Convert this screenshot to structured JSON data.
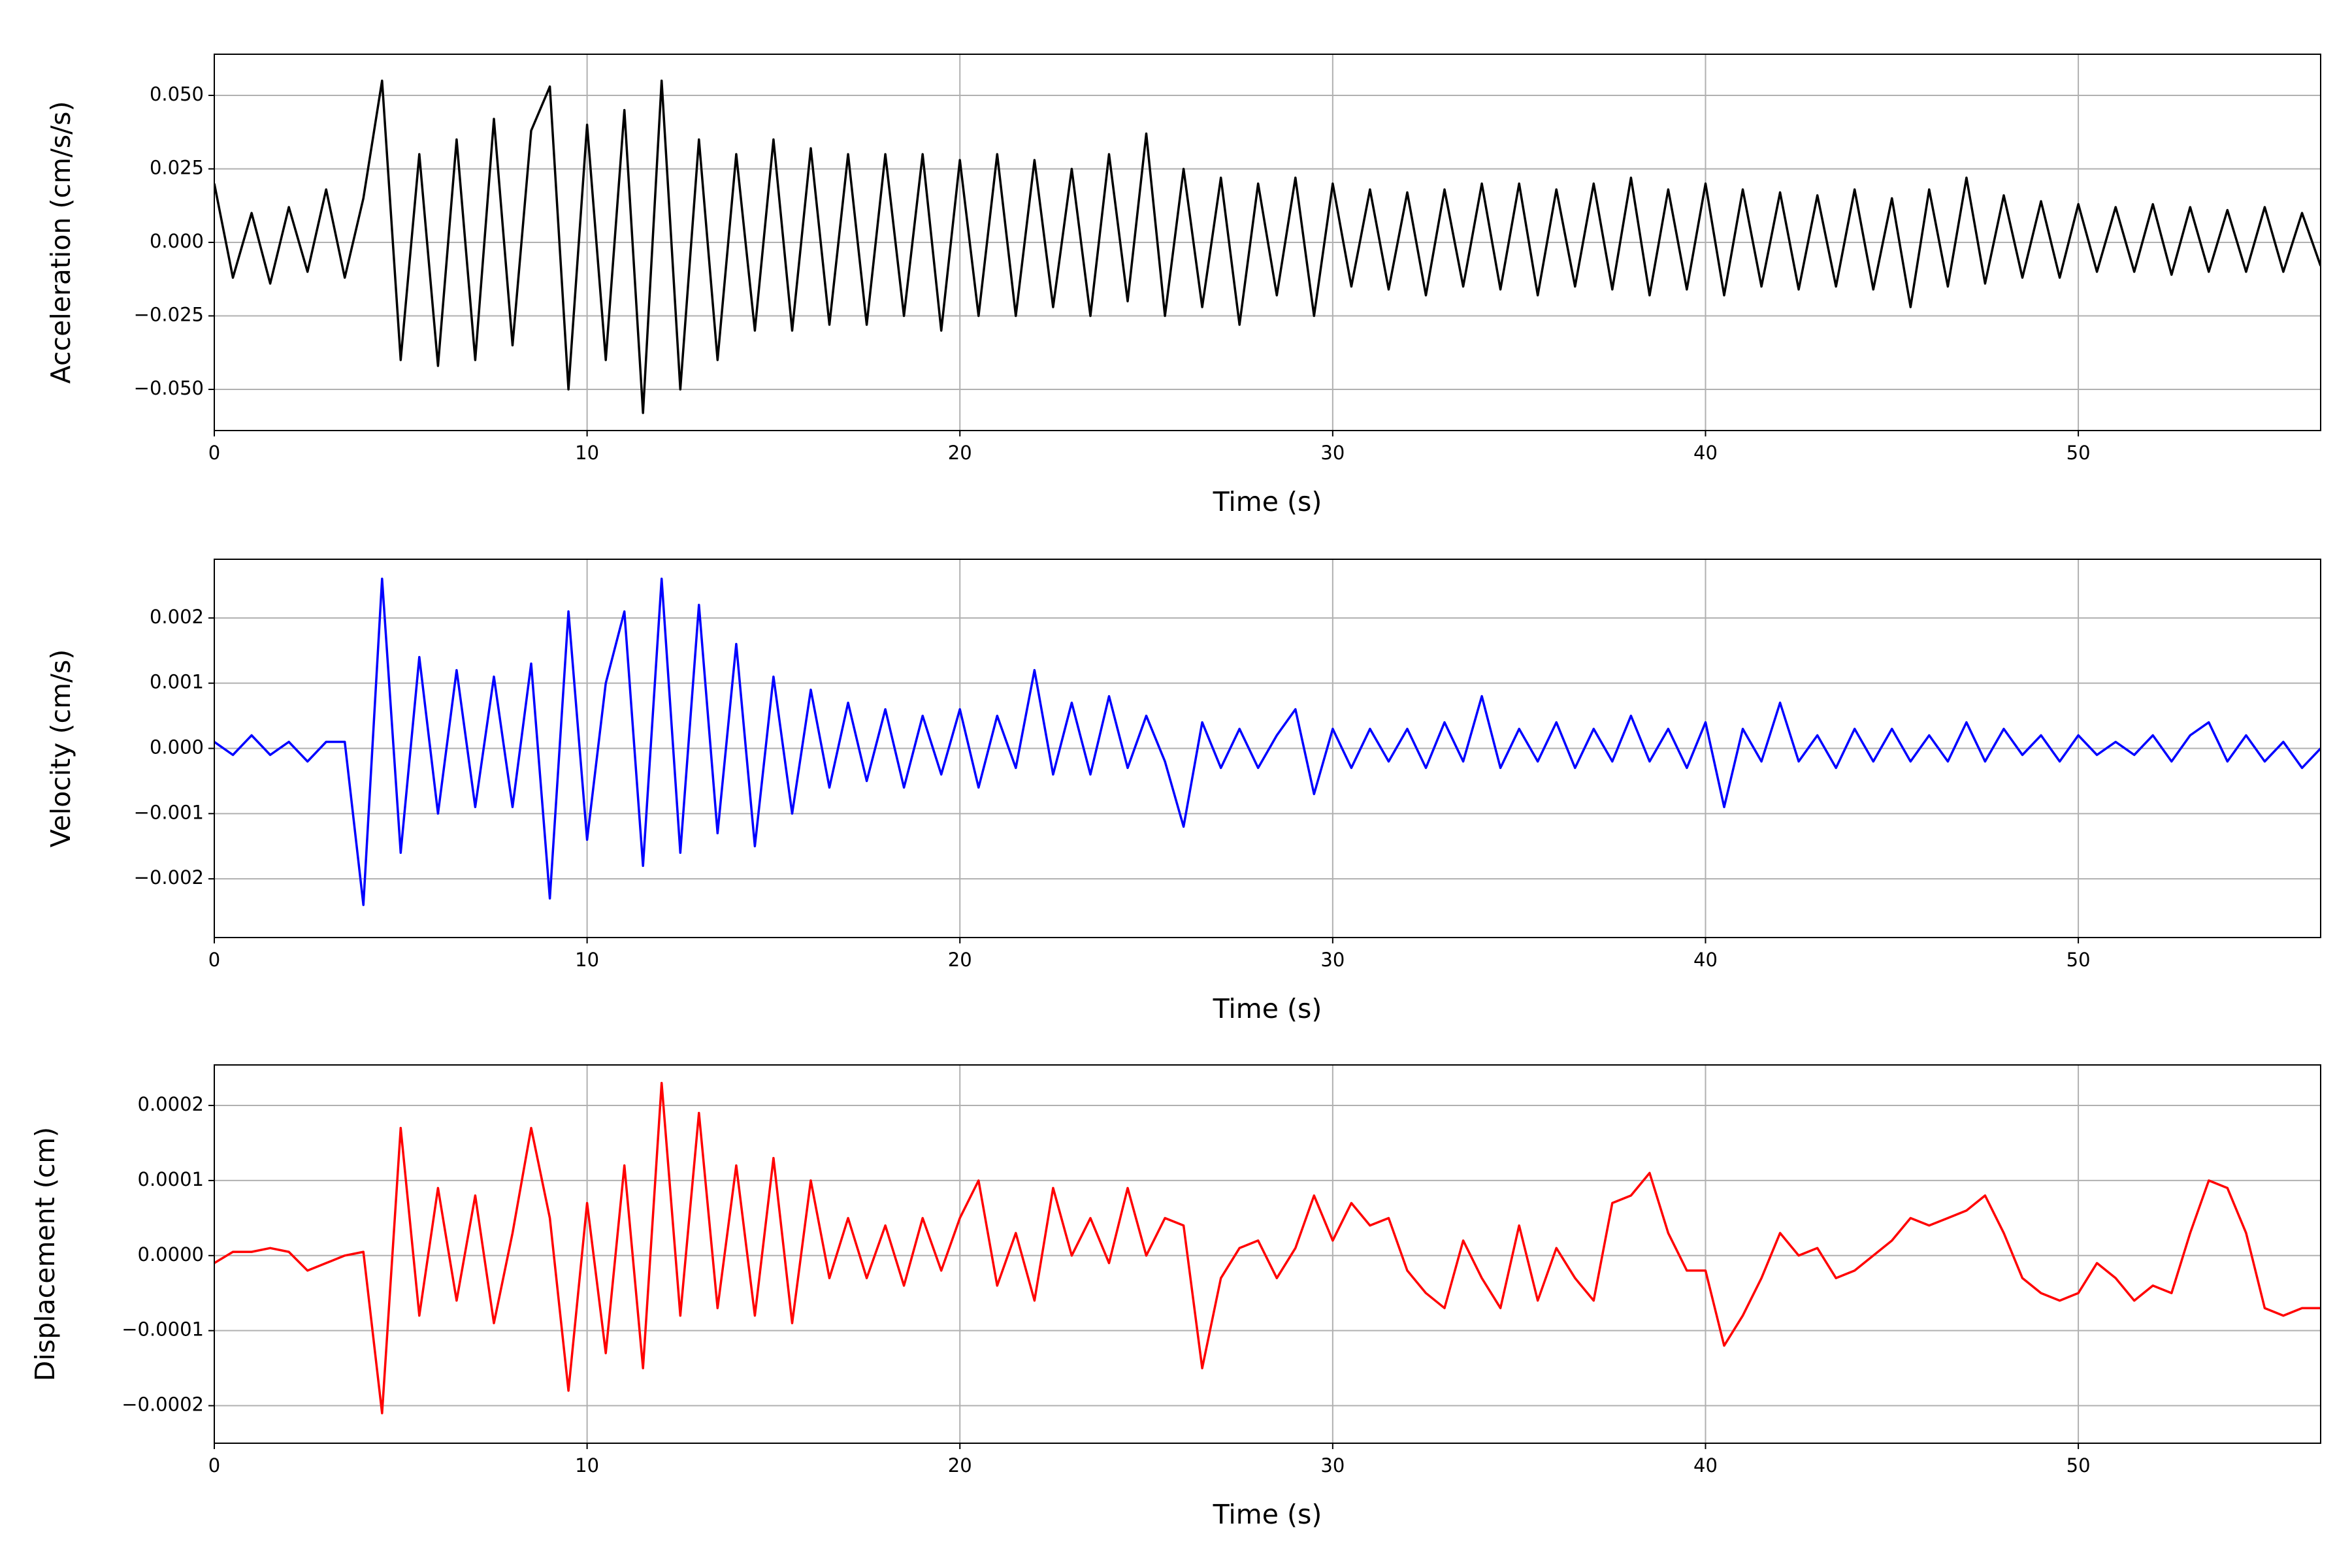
{
  "chart_data": [
    {
      "type": "line",
      "xlabel": "Time (s)",
      "ylabel": "Acceleration (cm/s/s)",
      "color": "#000000",
      "grid": true,
      "xlim": [
        0,
        56.5
      ],
      "xticks": [
        0,
        10,
        20,
        30,
        40,
        50
      ],
      "ylim": [
        -0.064,
        0.064
      ],
      "yticks": [
        {
          "value": -0.05,
          "label": "−0.050"
        },
        {
          "value": -0.025,
          "label": "−0.025"
        },
        {
          "value": 0,
          "label": "0.000"
        },
        {
          "value": 0.025,
          "label": "0.025"
        },
        {
          "value": 0.05,
          "label": "0.050"
        }
      ],
      "x": [
        0,
        0.5,
        1,
        1.5,
        2,
        2.5,
        3,
        3.5,
        4,
        4.5,
        5,
        5.5,
        6,
        6.5,
        7,
        7.5,
        8,
        8.5,
        9,
        9.5,
        10,
        10.5,
        11,
        11.5,
        12,
        12.5,
        13,
        13.5,
        14,
        14.5,
        15,
        15.5,
        16,
        16.5,
        17,
        17.5,
        18,
        18.5,
        19,
        19.5,
        20,
        20.5,
        21,
        21.5,
        22,
        22.5,
        23,
        23.5,
        24,
        24.5,
        25,
        25.5,
        26,
        26.5,
        27,
        27.5,
        28,
        28.5,
        29,
        29.5,
        30,
        30.5,
        31,
        31.5,
        32,
        32.5,
        33,
        33.5,
        34,
        34.5,
        35,
        35.5,
        36,
        36.5,
        37,
        37.5,
        38,
        38.5,
        39,
        39.5,
        40,
        40.5,
        41,
        41.5,
        42,
        42.5,
        43,
        43.5,
        44,
        44.5,
        45,
        45.5,
        46,
        46.5,
        47,
        47.5,
        48,
        48.5,
        49,
        49.5,
        50,
        50.5,
        51,
        51.5,
        52,
        52.5,
        53,
        53.5,
        54,
        54.5,
        55,
        55.5,
        56,
        56.5
      ],
      "values": [
        0.02,
        -0.012,
        0.01,
        -0.014,
        0.012,
        -0.01,
        0.018,
        -0.012,
        0.015,
        0.055,
        -0.04,
        0.03,
        -0.042,
        0.035,
        -0.04,
        0.042,
        -0.035,
        0.038,
        0.053,
        -0.05,
        0.04,
        -0.04,
        0.045,
        -0.058,
        0.055,
        -0.05,
        0.035,
        -0.04,
        0.03,
        -0.03,
        0.035,
        -0.03,
        0.032,
        -0.028,
        0.03,
        -0.028,
        0.03,
        -0.025,
        0.03,
        -0.03,
        0.028,
        -0.025,
        0.03,
        -0.025,
        0.028,
        -0.022,
        0.025,
        -0.025,
        0.03,
        -0.02,
        0.037,
        -0.025,
        0.025,
        -0.022,
        0.022,
        -0.028,
        0.02,
        -0.018,
        0.022,
        -0.025,
        0.02,
        -0.015,
        0.018,
        -0.016,
        0.017,
        -0.018,
        0.018,
        -0.015,
        0.02,
        -0.016,
        0.02,
        -0.018,
        0.018,
        -0.015,
        0.02,
        -0.016,
        0.022,
        -0.018,
        0.018,
        -0.016,
        0.02,
        -0.018,
        0.018,
        -0.015,
        0.017,
        -0.016,
        0.016,
        -0.015,
        0.018,
        -0.016,
        0.015,
        -0.022,
        0.018,
        -0.015,
        0.022,
        -0.014,
        0.016,
        -0.012,
        0.014,
        -0.012,
        0.013,
        -0.01,
        0.012,
        -0.01,
        0.013,
        -0.011,
        0.012,
        -0.01,
        0.011,
        -0.01,
        0.012,
        -0.01,
        0.01,
        -0.008
      ]
    },
    {
      "type": "line",
      "xlabel": "Time (s)",
      "ylabel": "Velocity (cm/s)",
      "color": "#0000ff",
      "grid": true,
      "xlim": [
        0,
        56.5
      ],
      "xticks": [
        0,
        10,
        20,
        30,
        40,
        50
      ],
      "ylim": [
        -0.0029,
        0.0029
      ],
      "yticks": [
        {
          "value": -0.002,
          "label": "−0.002"
        },
        {
          "value": -0.001,
          "label": "−0.001"
        },
        {
          "value": 0,
          "label": "0.000"
        },
        {
          "value": 0.001,
          "label": "0.001"
        },
        {
          "value": 0.002,
          "label": "0.002"
        }
      ],
      "x": [
        0,
        0.5,
        1,
        1.5,
        2,
        2.5,
        3,
        3.5,
        4,
        4.5,
        5,
        5.5,
        6,
        6.5,
        7,
        7.5,
        8,
        8.5,
        9,
        9.5,
        10,
        10.5,
        11,
        11.5,
        12,
        12.5,
        13,
        13.5,
        14,
        14.5,
        15,
        15.5,
        16,
        16.5,
        17,
        17.5,
        18,
        18.5,
        19,
        19.5,
        20,
        20.5,
        21,
        21.5,
        22,
        22.5,
        23,
        23.5,
        24,
        24.5,
        25,
        25.5,
        26,
        26.5,
        27,
        27.5,
        28,
        28.5,
        29,
        29.5,
        30,
        30.5,
        31,
        31.5,
        32,
        32.5,
        33,
        33.5,
        34,
        34.5,
        35,
        35.5,
        36,
        36.5,
        37,
        37.5,
        38,
        38.5,
        39,
        39.5,
        40,
        40.5,
        41,
        41.5,
        42,
        42.5,
        43,
        43.5,
        44,
        44.5,
        45,
        45.5,
        46,
        46.5,
        47,
        47.5,
        48,
        48.5,
        49,
        49.5,
        50,
        50.5,
        51,
        51.5,
        52,
        52.5,
        53,
        53.5,
        54,
        54.5,
        55,
        55.5,
        56,
        56.5
      ],
      "values": [
        0.0001,
        -0.0001,
        0.0002,
        -0.0001,
        0.0001,
        -0.0002,
        0.0001,
        0.0001,
        -0.0024,
        0.0026,
        -0.0016,
        0.0014,
        -0.001,
        0.0012,
        -0.0009,
        0.0011,
        -0.0009,
        0.0013,
        -0.0023,
        0.0021,
        -0.0014,
        0.001,
        0.0021,
        -0.0018,
        0.0026,
        -0.0016,
        0.0022,
        -0.0013,
        0.0016,
        -0.0015,
        0.0011,
        -0.001,
        0.0009,
        -0.0006,
        0.0007,
        -0.0005,
        0.0006,
        -0.0006,
        0.0005,
        -0.0004,
        0.0006,
        -0.0006,
        0.0005,
        -0.0003,
        0.0012,
        -0.0004,
        0.0007,
        -0.0004,
        0.0008,
        -0.0003,
        0.0005,
        -0.0002,
        -0.0012,
        0.0004,
        -0.0003,
        0.0003,
        -0.0003,
        0.0002,
        0.0006,
        -0.0007,
        0.0003,
        -0.0003,
        0.0003,
        -0.0002,
        0.0003,
        -0.0003,
        0.0004,
        -0.0002,
        0.0008,
        -0.0003,
        0.0003,
        -0.0002,
        0.0004,
        -0.0003,
        0.0003,
        -0.0002,
        0.0005,
        -0.0002,
        0.0003,
        -0.0003,
        0.0004,
        -0.0009,
        0.0003,
        -0.0002,
        0.0007,
        -0.0002,
        0.0002,
        -0.0003,
        0.0003,
        -0.0002,
        0.0003,
        -0.0002,
        0.0002,
        -0.0002,
        0.0004,
        -0.0002,
        0.0003,
        -0.0001,
        0.0002,
        -0.0002,
        0.0002,
        -0.0001,
        0.0001,
        -0.0001,
        0.0002,
        -0.0002,
        0.0002,
        0.0004,
        -0.0002,
        0.0002,
        -0.0002,
        0.0001,
        -0.0003,
        0
      ]
    },
    {
      "type": "line",
      "xlabel": "Time (s)",
      "ylabel": "Displacement (cm)",
      "color": "#ff0000",
      "grid": true,
      "xlim": [
        0,
        56.5
      ],
      "xticks": [
        0,
        10,
        20,
        30,
        40,
        50
      ],
      "ylim": [
        -0.00025,
        0.000254
      ],
      "yticks": [
        {
          "value": -0.0002,
          "label": "−0.0002"
        },
        {
          "value": -0.0001,
          "label": "−0.0001"
        },
        {
          "value": 0,
          "label": "0.0000"
        },
        {
          "value": 0.0001,
          "label": "0.0001"
        },
        {
          "value": 0.0002,
          "label": "0.0002"
        }
      ],
      "x": [
        0,
        0.5,
        1,
        1.5,
        2,
        2.5,
        3,
        3.5,
        4,
        4.5,
        5,
        5.5,
        6,
        6.5,
        7,
        7.5,
        8,
        8.5,
        9,
        9.5,
        10,
        10.5,
        11,
        11.5,
        12,
        12.5,
        13,
        13.5,
        14,
        14.5,
        15,
        15.5,
        16,
        16.5,
        17,
        17.5,
        18,
        18.5,
        19,
        19.5,
        20,
        20.5,
        21,
        21.5,
        22,
        22.5,
        23,
        23.5,
        24,
        24.5,
        25,
        25.5,
        26,
        26.5,
        27,
        27.5,
        28,
        28.5,
        29,
        29.5,
        30,
        30.5,
        31,
        31.5,
        32,
        32.5,
        33,
        33.5,
        34,
        34.5,
        35,
        35.5,
        36,
        36.5,
        37,
        37.5,
        38,
        38.5,
        39,
        39.5,
        40,
        40.5,
        41,
        41.5,
        42,
        42.5,
        43,
        43.5,
        44,
        44.5,
        45,
        45.5,
        46,
        46.5,
        47,
        47.5,
        48,
        48.5,
        49,
        49.5,
        50,
        50.5,
        51,
        51.5,
        52,
        52.5,
        53,
        53.5,
        54,
        54.5,
        55,
        55.5,
        56,
        56.5
      ],
      "values": [
        -1e-05,
        5e-06,
        5e-06,
        1e-05,
        5e-06,
        -2e-05,
        -1e-05,
        0,
        5e-06,
        -0.00021,
        0.00017,
        -8e-05,
        9e-05,
        -6e-05,
        8e-05,
        -9e-05,
        3e-05,
        0.00017,
        5e-05,
        -0.00018,
        7e-05,
        -0.00013,
        0.00012,
        -0.00015,
        0.00023,
        -8e-05,
        0.00019,
        -7e-05,
        0.00012,
        -8e-05,
        0.00013,
        -9e-05,
        0.0001,
        -3e-05,
        5e-05,
        -3e-05,
        4e-05,
        -4e-05,
        5e-05,
        -2e-05,
        5e-05,
        0.0001,
        -4e-05,
        3e-05,
        -6e-05,
        9e-05,
        0,
        5e-05,
        -1e-05,
        9e-05,
        0,
        5e-05,
        4e-05,
        -0.00015,
        -3e-05,
        1e-05,
        2e-05,
        -3e-05,
        1e-05,
        8e-05,
        2e-05,
        7e-05,
        4e-05,
        5e-05,
        -2e-05,
        -5e-05,
        -7e-05,
        2e-05,
        -3e-05,
        -7e-05,
        4e-05,
        -6e-05,
        1e-05,
        -3e-05,
        -6e-05,
        7e-05,
        8e-05,
        0.00011,
        3e-05,
        -2e-05,
        -2e-05,
        -0.00012,
        -8e-05,
        -3e-05,
        3e-05,
        0,
        1e-05,
        -3e-05,
        -2e-05,
        0,
        2e-05,
        5e-05,
        4e-05,
        5e-05,
        6e-05,
        8e-05,
        3e-05,
        -3e-05,
        -5e-05,
        -6e-05,
        -5e-05,
        -1e-05,
        -3e-05,
        -6e-05,
        -4e-05,
        -5e-05,
        3e-05,
        0.0001,
        9e-05,
        3e-05,
        -7e-05,
        -8e-05,
        -7e-05,
        -7e-05
      ]
    }
  ]
}
